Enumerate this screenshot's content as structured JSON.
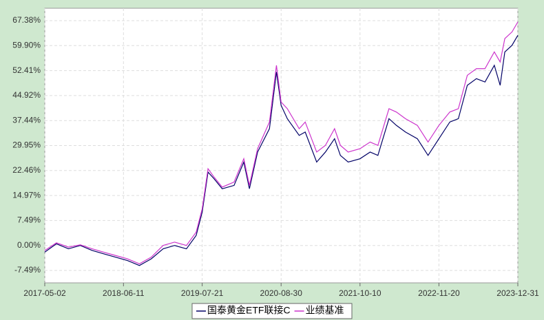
{
  "chart_data": {
    "type": "line",
    "x": [
      "2017-05-02",
      "2017-07-01",
      "2017-09-01",
      "2017-11-01",
      "2018-01-01",
      "2018-03-01",
      "2018-05-01",
      "2018-07-01",
      "2018-09-01",
      "2018-11-01",
      "2019-01-01",
      "2019-03-01",
      "2019-05-01",
      "2019-06-20",
      "2019-07-21",
      "2019-08-20",
      "2019-09-20",
      "2019-11-01",
      "2020-01-01",
      "2020-02-20",
      "2020-03-20",
      "2020-05-01",
      "2020-07-01",
      "2020-08-06",
      "2020-08-30",
      "2020-10-01",
      "2020-12-01",
      "2021-01-01",
      "2021-03-01",
      "2021-04-15",
      "2021-06-01",
      "2021-07-01",
      "2021-08-10",
      "2021-10-10",
      "2021-12-01",
      "2022-01-10",
      "2022-03-08",
      "2022-04-15",
      "2022-06-01",
      "2022-08-01",
      "2022-09-25",
      "2022-11-20",
      "2023-01-15",
      "2023-02-28",
      "2023-04-15",
      "2023-06-01",
      "2023-07-15",
      "2023-09-01",
      "2023-10-01",
      "2023-10-25",
      "2023-12-01",
      "2023-12-31"
    ],
    "series": [
      {
        "name": "国泰黄金ETF联接C",
        "color": "#000066",
        "values": [
          -2,
          0.5,
          -1,
          0,
          -1.5,
          -2.5,
          -3.5,
          -4.5,
          -6,
          -4,
          -1,
          0,
          -1,
          3,
          10,
          22,
          20,
          17,
          18,
          25,
          17,
          28,
          35,
          52,
          42,
          38,
          33,
          34,
          25,
          28,
          32,
          27,
          25,
          26,
          28,
          27,
          38,
          36,
          34,
          32,
          27,
          32,
          37,
          38,
          48,
          50,
          49,
          54,
          48,
          58,
          60,
          63
        ]
      },
      {
        "name": "业绩基准",
        "color": "#cc33cc",
        "values": [
          -1.5,
          0.8,
          -0.5,
          0.2,
          -1,
          -2,
          -3,
          -4,
          -5.5,
          -3.5,
          0,
          1,
          0,
          4,
          11,
          23,
          20.5,
          17.5,
          19,
          26,
          18,
          29,
          37,
          54,
          43,
          41,
          35,
          37,
          28,
          30,
          35,
          30,
          28,
          29,
          31,
          30,
          41,
          40,
          38,
          36,
          31,
          36,
          40,
          41,
          51,
          53,
          53,
          58,
          55,
          62,
          64,
          67
        ]
      }
    ],
    "xlim": [
      "2017-05-02",
      "2023-12-31"
    ],
    "xticks": [
      "2017-05-02",
      "2018-06-11",
      "2019-07-21",
      "2020-08-30",
      "2021-10-10",
      "2022-11-20",
      "2023-12-31"
    ],
    "ylim": [
      -11.2,
      71.1
    ],
    "yticks": [
      {
        "value": -7.49,
        "label": "-7.49%"
      },
      {
        "value": 0,
        "label": "0.00%"
      },
      {
        "value": 7.49,
        "label": "7.49%"
      },
      {
        "value": 14.97,
        "label": "14.97%"
      },
      {
        "value": 22.46,
        "label": "22.46%"
      },
      {
        "value": 29.95,
        "label": "29.95%"
      },
      {
        "value": 37.44,
        "label": "37.44%"
      },
      {
        "value": 44.92,
        "label": "44.92%"
      },
      {
        "value": 52.41,
        "label": "52.41%"
      },
      {
        "value": 59.9,
        "label": "59.90%"
      },
      {
        "value": 67.38,
        "label": "67.38%"
      }
    ],
    "grid": true,
    "legend": "bottom"
  }
}
